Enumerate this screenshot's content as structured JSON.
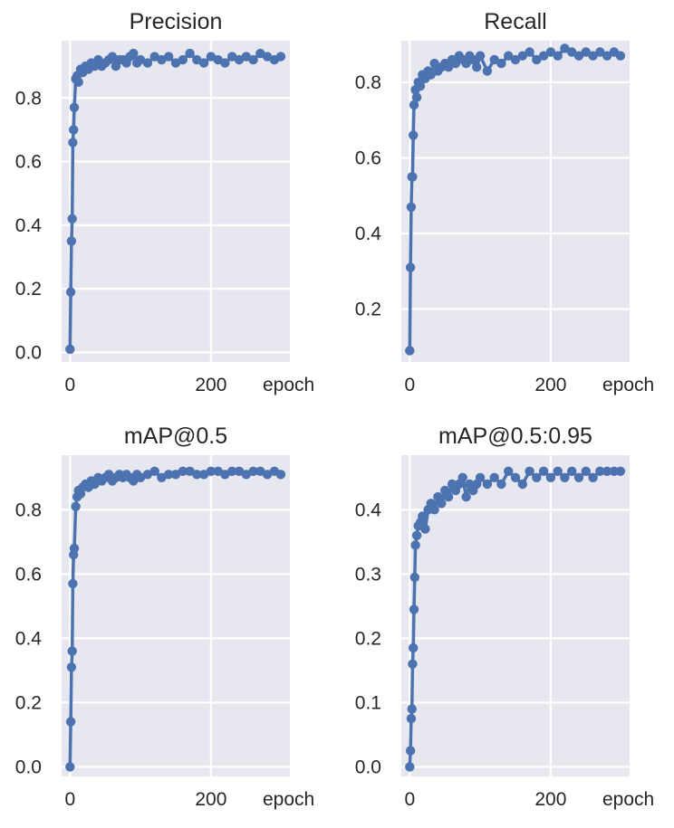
{
  "chart_data": [
    {
      "type": "line",
      "title": "Precision",
      "xlabel": "epoch",
      "xlim": [
        -12,
        312
      ],
      "ylim": [
        -0.03,
        0.98
      ],
      "xticks": [
        0,
        200
      ],
      "xtick_labels": [
        "0",
        "200"
      ],
      "yticks": [
        0.0,
        0.2,
        0.4,
        0.6,
        0.8
      ],
      "ytick_labels": [
        "0.0",
        "0.2",
        "0.4",
        "0.6",
        "0.8"
      ],
      "grid": true,
      "markers": true,
      "series": [
        {
          "x": [
            0,
            1,
            2,
            3,
            4,
            5,
            6,
            8,
            10,
            12,
            15,
            18,
            22,
            26,
            30,
            35,
            40,
            45,
            50,
            55,
            60,
            65,
            70,
            75,
            80,
            85,
            90,
            95,
            100,
            110,
            120,
            130,
            140,
            150,
            160,
            170,
            180,
            190,
            200,
            210,
            220,
            230,
            240,
            250,
            260,
            270,
            280,
            290,
            299
          ],
          "values": [
            0.01,
            0.19,
            0.35,
            0.42,
            0.66,
            0.7,
            0.77,
            0.86,
            0.87,
            0.85,
            0.89,
            0.88,
            0.9,
            0.89,
            0.91,
            0.9,
            0.92,
            0.9,
            0.91,
            0.92,
            0.93,
            0.9,
            0.92,
            0.92,
            0.91,
            0.93,
            0.94,
            0.91,
            0.92,
            0.91,
            0.93,
            0.92,
            0.93,
            0.91,
            0.92,
            0.94,
            0.92,
            0.91,
            0.93,
            0.92,
            0.91,
            0.93,
            0.92,
            0.93,
            0.92,
            0.94,
            0.93,
            0.92,
            0.93
          ]
        }
      ]
    },
    {
      "type": "line",
      "title": "Recall",
      "xlabel": "epoch",
      "xlim": [
        -12,
        312
      ],
      "ylim": [
        0.06,
        0.91
      ],
      "xticks": [
        0,
        200
      ],
      "xtick_labels": [
        "0",
        "200"
      ],
      "yticks": [
        0.2,
        0.4,
        0.6,
        0.8
      ],
      "ytick_labels": [
        "0.2",
        "0.4",
        "0.6",
        "0.8"
      ],
      "grid": true,
      "markers": true,
      "series": [
        {
          "x": [
            0,
            1,
            2,
            3,
            4,
            5,
            6,
            8,
            10,
            12,
            15,
            18,
            22,
            26,
            30,
            35,
            40,
            45,
            50,
            55,
            60,
            65,
            70,
            75,
            80,
            85,
            90,
            95,
            100,
            110,
            120,
            130,
            140,
            150,
            160,
            170,
            180,
            190,
            200,
            210,
            220,
            230,
            240,
            250,
            260,
            270,
            280,
            290,
            299
          ],
          "values": [
            0.09,
            0.31,
            0.47,
            0.55,
            0.55,
            0.66,
            0.74,
            0.78,
            0.76,
            0.8,
            0.79,
            0.82,
            0.81,
            0.83,
            0.82,
            0.85,
            0.83,
            0.84,
            0.85,
            0.84,
            0.86,
            0.85,
            0.87,
            0.86,
            0.85,
            0.87,
            0.86,
            0.84,
            0.87,
            0.83,
            0.86,
            0.85,
            0.87,
            0.86,
            0.87,
            0.88,
            0.86,
            0.87,
            0.88,
            0.87,
            0.89,
            0.88,
            0.87,
            0.88,
            0.87,
            0.88,
            0.87,
            0.88,
            0.87
          ]
        }
      ]
    },
    {
      "type": "line",
      "title": "mAP@0.5",
      "xlabel": "epoch",
      "xlim": [
        -12,
        312
      ],
      "ylim": [
        -0.03,
        0.97
      ],
      "xticks": [
        0,
        200
      ],
      "xtick_labels": [
        "0",
        "200"
      ],
      "yticks": [
        0.0,
        0.2,
        0.4,
        0.6,
        0.8
      ],
      "ytick_labels": [
        "0.0",
        "0.2",
        "0.4",
        "0.6",
        "0.8"
      ],
      "grid": true,
      "markers": true,
      "series": [
        {
          "x": [
            0,
            1,
            2,
            3,
            4,
            5,
            6,
            8,
            10,
            12,
            15,
            18,
            22,
            26,
            30,
            35,
            40,
            45,
            50,
            55,
            60,
            65,
            70,
            75,
            80,
            85,
            90,
            95,
            100,
            110,
            120,
            130,
            140,
            150,
            160,
            170,
            180,
            190,
            200,
            210,
            220,
            230,
            240,
            250,
            260,
            270,
            280,
            290,
            299
          ],
          "values": [
            0.0,
            0.14,
            0.31,
            0.36,
            0.57,
            0.66,
            0.68,
            0.81,
            0.84,
            0.86,
            0.85,
            0.87,
            0.88,
            0.87,
            0.89,
            0.88,
            0.9,
            0.89,
            0.9,
            0.91,
            0.89,
            0.9,
            0.91,
            0.9,
            0.91,
            0.9,
            0.89,
            0.91,
            0.9,
            0.91,
            0.92,
            0.9,
            0.91,
            0.91,
            0.92,
            0.92,
            0.91,
            0.91,
            0.92,
            0.92,
            0.91,
            0.92,
            0.92,
            0.91,
            0.92,
            0.92,
            0.91,
            0.92,
            0.91
          ]
        }
      ]
    },
    {
      "type": "line",
      "title": "mAP@0.5:0.95",
      "xlabel": "epoch",
      "xlim": [
        -12,
        312
      ],
      "ylim": [
        -0.015,
        0.485
      ],
      "xticks": [
        0,
        200
      ],
      "xtick_labels": [
        "0",
        "200"
      ],
      "yticks": [
        0.0,
        0.1,
        0.2,
        0.3,
        0.4
      ],
      "ytick_labels": [
        "0.0",
        "0.1",
        "0.2",
        "0.3",
        "0.4"
      ],
      "grid": true,
      "markers": true,
      "series": [
        {
          "x": [
            0,
            1,
            2,
            3,
            4,
            5,
            6,
            7,
            8,
            10,
            12,
            15,
            18,
            22,
            26,
            30,
            35,
            40,
            45,
            50,
            55,
            60,
            65,
            70,
            75,
            80,
            85,
            90,
            95,
            100,
            110,
            120,
            130,
            140,
            150,
            160,
            170,
            180,
            190,
            200,
            210,
            220,
            230,
            240,
            250,
            260,
            270,
            280,
            290,
            299
          ],
          "values": [
            0.0,
            0.025,
            0.075,
            0.09,
            0.16,
            0.185,
            0.245,
            0.295,
            0.345,
            0.36,
            0.375,
            0.38,
            0.39,
            0.37,
            0.4,
            0.41,
            0.4,
            0.42,
            0.41,
            0.43,
            0.42,
            0.44,
            0.43,
            0.44,
            0.45,
            0.42,
            0.44,
            0.43,
            0.44,
            0.45,
            0.44,
            0.45,
            0.44,
            0.46,
            0.45,
            0.44,
            0.46,
            0.45,
            0.46,
            0.45,
            0.46,
            0.45,
            0.46,
            0.45,
            0.46,
            0.45,
            0.46,
            0.46,
            0.46,
            0.46
          ]
        }
      ]
    }
  ]
}
